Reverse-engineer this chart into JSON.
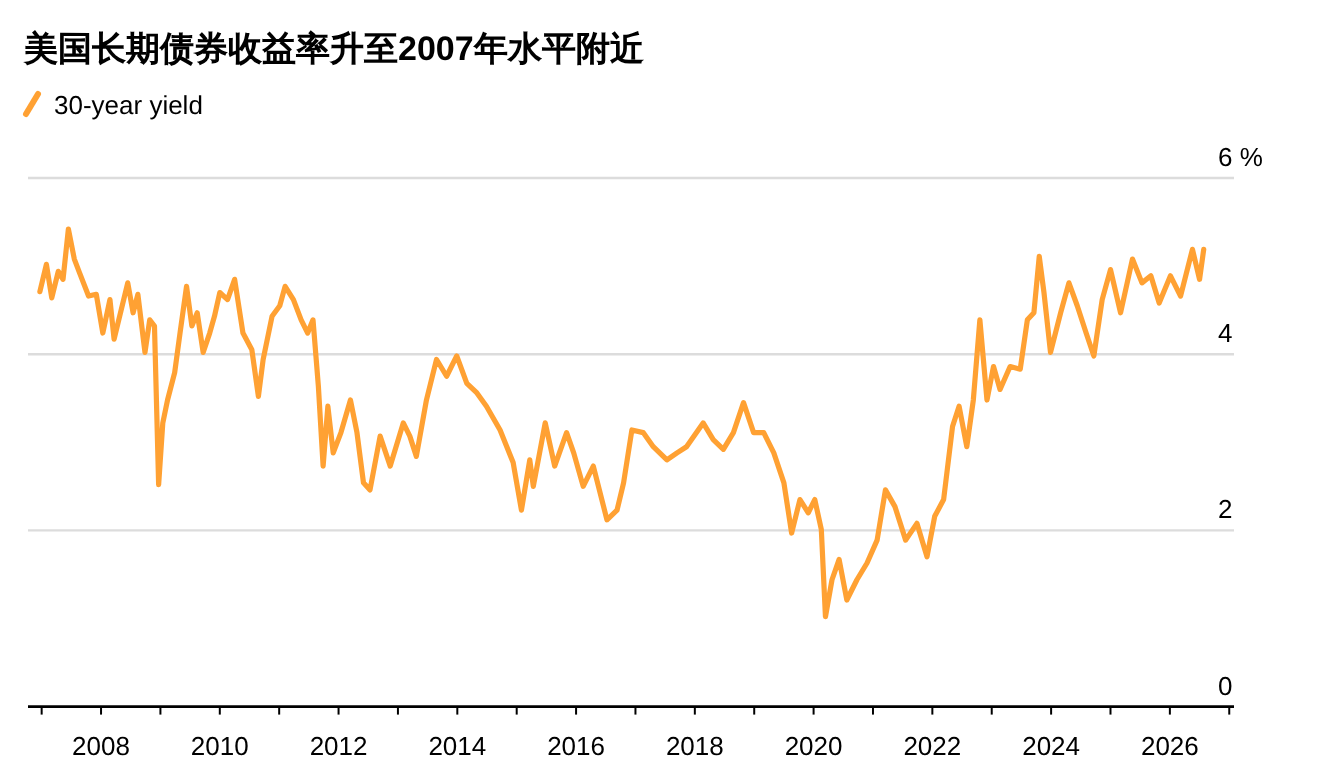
{
  "chart_data": {
    "type": "line",
    "title": "美国长期债券收益率升至2007年水平附近",
    "legend": "top left",
    "grid": "y",
    "xlim": [
      2006.77,
      2027.08
    ],
    "xticks": [
      {
        "value": 2007,
        "label": null
      },
      2008,
      {
        "value": 2009,
        "label": null
      },
      2010,
      {
        "value": 2011,
        "label": null
      },
      2012,
      {
        "value": 2013,
        "label": null
      },
      2014,
      {
        "value": 2015,
        "label": null
      },
      2016,
      {
        "value": 2017,
        "label": null
      },
      2018,
      {
        "value": 2019,
        "label": null
      },
      2020,
      {
        "value": 2021,
        "label": null
      },
      2022,
      {
        "value": 2023,
        "label": null
      },
      2024,
      {
        "value": 2025,
        "label": null
      },
      2026,
      {
        "value": 2027,
        "label": null
      }
    ],
    "ylim": [
      0,
      6
    ],
    "yticks": [
      0,
      2,
      4,
      {
        "value": 6,
        "label": "6 %"
      }
    ],
    "series": [
      {
        "name": "30-year yield",
        "color": "#ffa133",
        "x": [
          2006.97,
          2007.08,
          2007.17,
          2007.28,
          2007.36,
          2007.45,
          2007.55,
          2007.64,
          2007.79,
          2007.92,
          2008.03,
          2008.15,
          2008.22,
          2008.45,
          2008.54,
          2008.62,
          2008.74,
          2008.82,
          2008.9,
          2008.97,
          2009.04,
          2009.12,
          2009.24,
          2009.33,
          2009.44,
          2009.53,
          2009.62,
          2009.72,
          2009.83,
          2009.91,
          2010.0,
          2010.13,
          2010.25,
          2010.39,
          2010.54,
          2010.65,
          2010.73,
          2010.88,
          2011.01,
          2011.1,
          2011.24,
          2011.37,
          2011.48,
          2011.57,
          2011.66,
          2011.74,
          2011.82,
          2011.91,
          2012.04,
          2012.2,
          2012.31,
          2012.42,
          2012.53,
          2012.7,
          2012.87,
          2013.09,
          2013.2,
          2013.31,
          2013.48,
          2013.65,
          2013.82,
          2013.99,
          2014.16,
          2014.33,
          2014.49,
          2014.72,
          2014.94,
          2015.08,
          2015.22,
          2015.28,
          2015.48,
          2015.64,
          2015.84,
          2015.96,
          2016.12,
          2016.29,
          2016.52,
          2016.69,
          2016.8,
          2016.94,
          2017.13,
          2017.3,
          2017.53,
          2017.7,
          2017.86,
          2018.14,
          2018.31,
          2018.48,
          2018.65,
          2018.82,
          2018.99,
          2019.16,
          2019.33,
          2019.5,
          2019.63,
          2019.77,
          2019.91,
          2020.02,
          2020.13,
          2020.2,
          2020.31,
          2020.43,
          2020.56,
          2020.73,
          2020.9,
          2021.07,
          2021.21,
          2021.37,
          2021.55,
          2021.74,
          2021.91,
          2022.04,
          2022.19,
          2022.34,
          2022.45,
          2022.58,
          2022.69,
          2022.8,
          2022.92,
          2023.03,
          2023.14,
          2023.31,
          2023.48,
          2023.6,
          2023.71,
          2023.8,
          2023.88,
          2023.99,
          2024.16,
          2024.3,
          2024.44,
          2024.59,
          2024.72,
          2024.86,
          2025.0,
          2025.17,
          2025.37,
          2025.53,
          2025.68,
          2025.82,
          2026.01,
          2026.18,
          2026.38,
          2026.5,
          2026.57
        ],
        "values": [
          4.71,
          5.02,
          4.64,
          4.94,
          4.85,
          5.42,
          5.08,
          4.92,
          4.66,
          4.68,
          4.24,
          4.62,
          4.17,
          4.81,
          4.47,
          4.68,
          4.02,
          4.39,
          4.32,
          2.52,
          3.22,
          3.48,
          3.79,
          4.24,
          4.77,
          4.32,
          4.47,
          4.02,
          4.24,
          4.43,
          4.7,
          4.62,
          4.85,
          4.24,
          4.05,
          3.52,
          3.94,
          4.43,
          4.55,
          4.77,
          4.62,
          4.39,
          4.24,
          4.39,
          3.64,
          2.73,
          3.41,
          2.88,
          3.11,
          3.48,
          3.11,
          2.54,
          2.46,
          3.07,
          2.73,
          3.22,
          3.07,
          2.84,
          3.48,
          3.94,
          3.75,
          3.98,
          3.67,
          3.56,
          3.41,
          3.14,
          2.77,
          2.23,
          2.8,
          2.5,
          3.22,
          2.73,
          3.11,
          2.88,
          2.5,
          2.73,
          2.12,
          2.23,
          2.54,
          3.14,
          3.11,
          2.95,
          2.8,
          2.88,
          2.95,
          3.22,
          3.03,
          2.92,
          3.11,
          3.45,
          3.11,
          3.11,
          2.88,
          2.54,
          1.97,
          2.35,
          2.2,
          2.35,
          2.01,
          1.02,
          1.44,
          1.67,
          1.21,
          1.44,
          1.63,
          1.89,
          2.46,
          2.27,
          1.89,
          2.08,
          1.7,
          2.16,
          2.35,
          3.18,
          3.41,
          2.95,
          3.48,
          4.39,
          3.48,
          3.86,
          3.6,
          3.86,
          3.83,
          4.39,
          4.47,
          5.11,
          4.7,
          4.02,
          4.47,
          4.81,
          4.55,
          4.24,
          3.98,
          4.62,
          4.96,
          4.47,
          5.08,
          4.81,
          4.89,
          4.58,
          4.89,
          4.66,
          5.19,
          4.85,
          5.19
        ]
      }
    ]
  }
}
